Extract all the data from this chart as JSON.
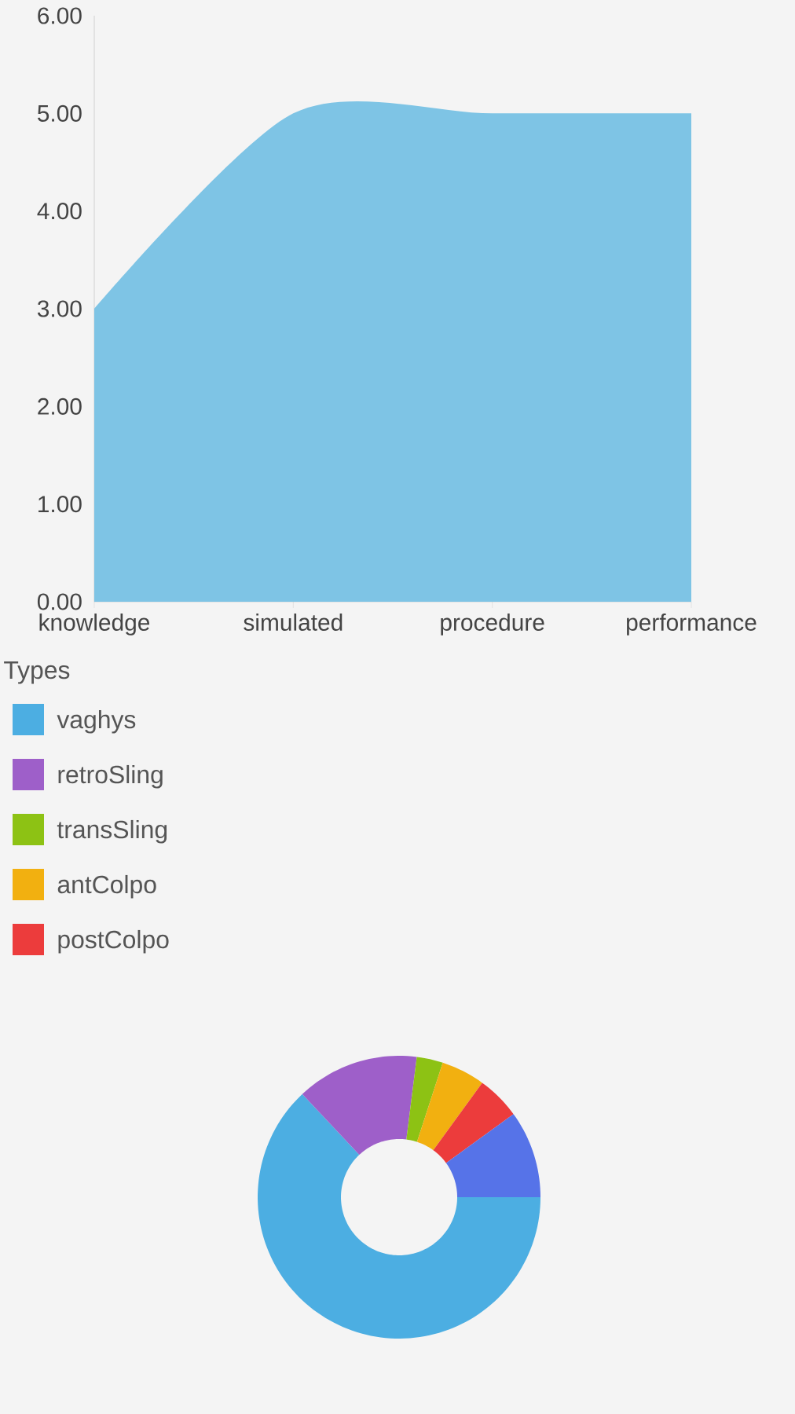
{
  "chart_data": [
    {
      "type": "area",
      "categories": [
        "knowledge",
        "simulated",
        "procedure",
        "performance"
      ],
      "values": [
        3,
        5,
        5,
        5
      ],
      "color": "#7ec4e5",
      "ylim": [
        0,
        6
      ],
      "yticks": [
        {
          "value": 0,
          "label": "0.00"
        },
        {
          "value": 1,
          "label": "1.00"
        },
        {
          "value": 2,
          "label": "2.00"
        },
        {
          "value": 3,
          "label": "3.00"
        },
        {
          "value": 4,
          "label": "4.00"
        },
        {
          "value": 5,
          "label": "5.00"
        },
        {
          "value": 6,
          "label": "6.00"
        }
      ]
    },
    {
      "type": "donut",
      "legend_title": "Types",
      "categories": [
        "vaghys",
        "retroSling",
        "transSling",
        "antColpo",
        "postColpo",
        null
      ],
      "values": [
        63,
        14,
        3,
        5,
        5,
        10
      ],
      "colors": [
        "#4caee2",
        "#9e5fc9",
        "#8dc214",
        "#f2b010",
        "#ec3c3c",
        "#5673e8"
      ],
      "legend": "top left"
    }
  ]
}
